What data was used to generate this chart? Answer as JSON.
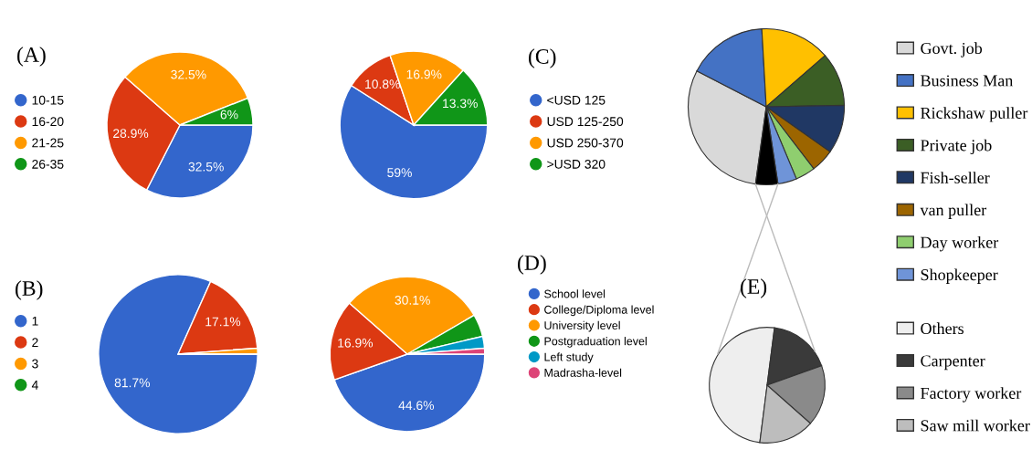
{
  "chart_data": [
    {
      "type": "pie",
      "title": "(A)",
      "categories": [
        "10-15",
        "16-20",
        "21-25",
        "26-35"
      ],
      "values": [
        32.5,
        28.9,
        32.5,
        6
      ],
      "colors": [
        "#3366cc",
        "#dc3912",
        "#ff9900",
        "#109618"
      ],
      "value_labels": [
        "32.5%",
        "28.9%",
        "32.5%",
        "6%"
      ],
      "legend": "left"
    },
    {
      "type": "pie",
      "title": "(C)",
      "categories": [
        "<USD 125",
        "USD 125-250",
        "USD 250-370",
        ">USD 320"
      ],
      "values": [
        59,
        10.8,
        16.9,
        13.3
      ],
      "colors": [
        "#3366cc",
        "#dc3912",
        "#ff9900",
        "#109618"
      ],
      "value_labels": [
        "59%",
        "10.8%",
        "16.9%",
        "13.3%"
      ],
      "legend": "right"
    },
    {
      "type": "pie",
      "title": "(B)",
      "categories": [
        "1",
        "2",
        "3",
        "4"
      ],
      "values": [
        81.7,
        17.1,
        1.2,
        0
      ],
      "colors": [
        "#3366cc",
        "#dc3912",
        "#ff9900",
        "#109618"
      ],
      "value_labels": [
        "81.7%",
        "17.1%",
        null,
        null
      ],
      "legend": "left"
    },
    {
      "type": "pie",
      "title": "(D)",
      "categories": [
        "School level",
        "College/Diploma level",
        "University level",
        "Postgraduation level",
        "Left study",
        "Madrasha-level"
      ],
      "values": [
        44.6,
        16.9,
        30.1,
        4.7,
        2.5,
        1.2
      ],
      "colors": [
        "#3366cc",
        "#dc3912",
        "#ff9900",
        "#109618",
        "#0099c6",
        "#dd4477"
      ],
      "value_labels": [
        "44.6%",
        "16.9%",
        "30.1%",
        null,
        null,
        null
      ],
      "legend": "right"
    },
    {
      "type": "pie",
      "title": "(E)",
      "categories": [
        "Govt. job",
        "Business Man",
        "Rickshaw puller",
        "Private job",
        "Fish-seller",
        "van puller",
        "Day worker",
        "Shopkeeper",
        null
      ],
      "values": [
        30.4,
        16.5,
        14.5,
        11.1,
        10.1,
        4.8,
        4.1,
        3.9,
        4.6
      ],
      "colors": [
        "#d9d9d9",
        "#4472c4",
        "#ffc000",
        "#3b5e25",
        "#203864",
        "#9c6500",
        "#8fce6f",
        "#6f94d8",
        "#000000"
      ],
      "legend": "right"
    },
    {
      "type": "pie",
      "categories": [
        "Others",
        "Carpenter",
        "Factory worker",
        "Saw mill worker"
      ],
      "values": [
        50,
        17.5,
        17,
        15.5
      ],
      "colors": [
        "#eeeeee",
        "#3a3a3a",
        "#8a8a8a",
        "#bdbdbd"
      ],
      "legend": "right"
    }
  ]
}
